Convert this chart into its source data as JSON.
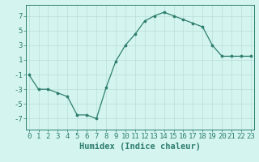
{
  "x": [
    0,
    1,
    2,
    3,
    4,
    5,
    6,
    7,
    8,
    9,
    10,
    11,
    12,
    13,
    14,
    15,
    16,
    17,
    18,
    19,
    20,
    21,
    22,
    23
  ],
  "y": [
    -1,
    -3,
    -3,
    -3.5,
    -4,
    -6.5,
    -6.5,
    -7,
    -2.8,
    0.8,
    3,
    4.5,
    6.3,
    7,
    7.5,
    7,
    6.5,
    6,
    5.5,
    3,
    1.5,
    1.5,
    1.5,
    1.5
  ],
  "line_color": "#2e7d6e",
  "marker_color": "#2e7d6e",
  "bg_color": "#d4f5ef",
  "grid_color": "#b8ddd7",
  "xlabel": "Humidex (Indice chaleur)",
  "ylim": [
    -8.5,
    8.5
  ],
  "yticks": [
    -7,
    -5,
    -3,
    -1,
    1,
    3,
    5,
    7
  ],
  "xticks": [
    0,
    1,
    2,
    3,
    4,
    5,
    6,
    7,
    8,
    9,
    10,
    11,
    12,
    13,
    14,
    15,
    16,
    17,
    18,
    19,
    20,
    21,
    22,
    23
  ],
  "axis_color": "#2e7d6e",
  "font_color": "#2e7d6e",
  "xlabel_fontsize": 7.5,
  "tick_fontsize": 6.5
}
